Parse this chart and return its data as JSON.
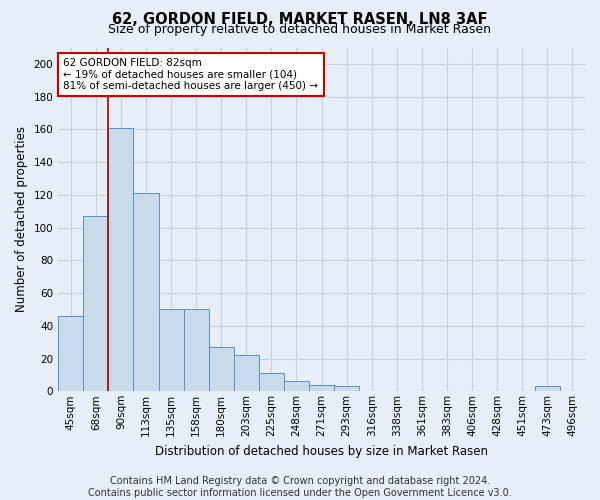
{
  "title": "62, GORDON FIELD, MARKET RASEN, LN8 3AF",
  "subtitle": "Size of property relative to detached houses in Market Rasen",
  "xlabel": "Distribution of detached houses by size in Market Rasen",
  "ylabel": "Number of detached properties",
  "categories": [
    "45sqm",
    "68sqm",
    "90sqm",
    "113sqm",
    "135sqm",
    "158sqm",
    "180sqm",
    "203sqm",
    "225sqm",
    "248sqm",
    "271sqm",
    "293sqm",
    "316sqm",
    "338sqm",
    "361sqm",
    "383sqm",
    "406sqm",
    "428sqm",
    "451sqm",
    "473sqm",
    "496sqm"
  ],
  "values": [
    46,
    107,
    161,
    121,
    50,
    50,
    27,
    22,
    11,
    6,
    4,
    3,
    0,
    0,
    0,
    0,
    0,
    0,
    0,
    3,
    0
  ],
  "bar_color": "#c9daea",
  "bar_edge_color": "#5b8fc9",
  "background_color": "#e8eef8",
  "grid_color": "#c8d0dc",
  "red_line_color": "#aa0000",
  "annotation_text": "62 GORDON FIELD: 82sqm\n← 19% of detached houses are smaller (104)\n81% of semi-detached houses are larger (450) →",
  "annotation_box_color": "#ffffff",
  "annotation_box_edge": "#cc0000",
  "ylim": [
    0,
    210
  ],
  "yticks": [
    0,
    20,
    40,
    60,
    80,
    100,
    120,
    140,
    160,
    180,
    200
  ],
  "footer": "Contains HM Land Registry data © Crown copyright and database right 2024.\nContains public sector information licensed under the Open Government Licence v3.0.",
  "title_fontsize": 10.5,
  "subtitle_fontsize": 9,
  "ylabel_fontsize": 8.5,
  "xlabel_fontsize": 8.5,
  "tick_fontsize": 7.5,
  "footer_fontsize": 7
}
